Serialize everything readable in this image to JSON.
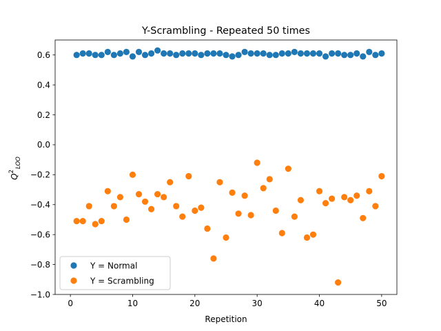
{
  "chart_data": {
    "type": "scatter",
    "title": "Y-Scrambling - Repeated 50 times",
    "xlabel": "Repetition",
    "ylabel": {
      "main": "Q",
      "sup": "2",
      "sub": "LOO"
    },
    "xlim": [
      -2.45,
      52.45
    ],
    "ylim": [
      -1.0,
      0.7
    ],
    "xticks": [
      0,
      10,
      20,
      30,
      40,
      50
    ],
    "xtick_labels": [
      "0",
      "10",
      "20",
      "30",
      "40",
      "50"
    ],
    "yticks": [
      -1.0,
      -0.8,
      -0.6,
      -0.4,
      -0.2,
      0.0,
      0.2,
      0.4,
      0.6
    ],
    "ytick_labels": [
      "−1.0",
      "−0.8",
      "−0.6",
      "−0.4",
      "−0.2",
      "0.0",
      "0.2",
      "0.4",
      "0.6"
    ],
    "grid": false,
    "legend_position": "lower-left",
    "series": [
      {
        "name": "Y = Normal",
        "color": "#1f77b4",
        "x": [
          1,
          2,
          3,
          4,
          5,
          6,
          7,
          8,
          9,
          10,
          11,
          12,
          13,
          14,
          15,
          16,
          17,
          18,
          19,
          20,
          21,
          22,
          23,
          24,
          25,
          26,
          27,
          28,
          29,
          30,
          31,
          32,
          33,
          34,
          35,
          36,
          37,
          38,
          39,
          40,
          41,
          42,
          43,
          44,
          45,
          46,
          47,
          48,
          49,
          50
        ],
        "y": [
          0.6,
          0.61,
          0.61,
          0.6,
          0.6,
          0.62,
          0.6,
          0.61,
          0.62,
          0.59,
          0.62,
          0.6,
          0.61,
          0.63,
          0.61,
          0.61,
          0.6,
          0.61,
          0.61,
          0.61,
          0.6,
          0.61,
          0.61,
          0.61,
          0.6,
          0.59,
          0.6,
          0.62,
          0.61,
          0.61,
          0.61,
          0.6,
          0.6,
          0.61,
          0.61,
          0.62,
          0.61,
          0.61,
          0.61,
          0.61,
          0.59,
          0.61,
          0.61,
          0.6,
          0.6,
          0.61,
          0.59,
          0.62,
          0.6,
          0.61
        ]
      },
      {
        "name": "Y = Scrambling",
        "color": "#ff7f0e",
        "x": [
          1,
          2,
          3,
          4,
          5,
          6,
          7,
          8,
          9,
          10,
          11,
          12,
          13,
          14,
          15,
          16,
          17,
          18,
          19,
          20,
          21,
          22,
          23,
          24,
          25,
          26,
          27,
          28,
          29,
          30,
          31,
          32,
          33,
          34,
          35,
          36,
          37,
          38,
          39,
          40,
          41,
          42,
          43,
          44,
          45,
          46,
          47,
          48,
          49,
          50
        ],
        "y": [
          -0.51,
          -0.51,
          -0.41,
          -0.53,
          -0.51,
          -0.31,
          -0.41,
          -0.35,
          -0.5,
          -0.2,
          -0.33,
          -0.38,
          -0.43,
          -0.33,
          -0.35,
          -0.25,
          -0.41,
          -0.48,
          -0.21,
          -0.44,
          -0.42,
          -0.56,
          -0.76,
          -0.25,
          -0.62,
          -0.32,
          -0.46,
          -0.34,
          -0.47,
          -0.12,
          -0.29,
          -0.23,
          -0.44,
          -0.59,
          -0.16,
          -0.48,
          -0.37,
          -0.62,
          -0.6,
          -0.31,
          -0.39,
          -0.36,
          -0.92,
          -0.35,
          -0.37,
          -0.34,
          -0.49,
          -0.31,
          -0.41,
          -0.21
        ]
      }
    ]
  }
}
